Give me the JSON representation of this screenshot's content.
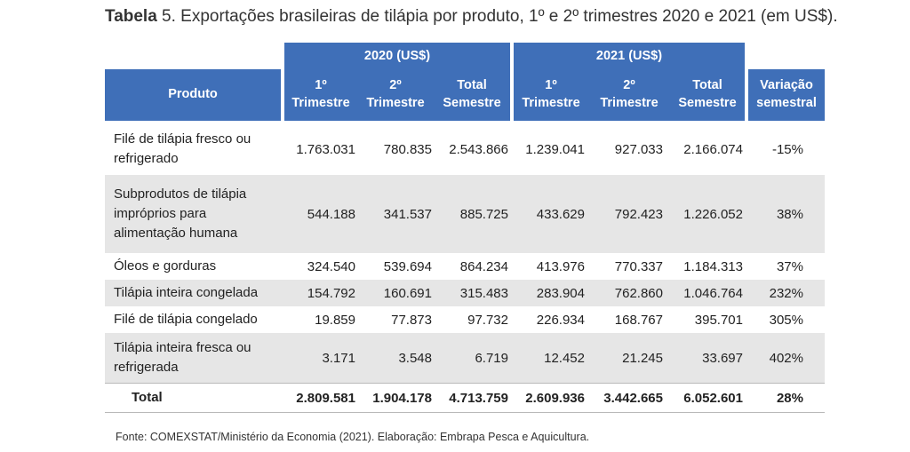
{
  "caption": {
    "prefix": "Tabela",
    "text": " 5. Exportações brasileiras de tilápia por produto, 1º e 2º trimestres 2020 e 2021 (em US$)."
  },
  "table": {
    "group_headers": [
      "2020 (US$)",
      "2021 (US$)"
    ],
    "columns": [
      "Produto",
      "1º\nTrimestre",
      "2º\nTrimestre",
      "Total\nSemestre",
      "1º\nTrimestre",
      "2º\nTrimestre",
      "Total\nSemestre",
      "Variação\nsemestral"
    ],
    "rows": [
      {
        "produto": "Filé de tilápia fresco ou refrigerado",
        "values": [
          "1.763.031",
          "780.835",
          "2.543.866",
          "1.239.041",
          "927.033",
          "2.166.074",
          "-15%"
        ]
      },
      {
        "produto": "Subprodutos de tilápia impróprios para alimentação humana",
        "values": [
          "544.188",
          "341.537",
          "885.725",
          "433.629",
          "792.423",
          "1.226.052",
          "38%"
        ]
      },
      {
        "produto": "Óleos e gorduras",
        "values": [
          "324.540",
          "539.694",
          "864.234",
          "413.976",
          "770.337",
          "1.184.313",
          "37%"
        ]
      },
      {
        "produto": "Tilápia inteira congelada",
        "values": [
          "154.792",
          "160.691",
          "315.483",
          "283.904",
          "762.860",
          "1.046.764",
          "232%"
        ]
      },
      {
        "produto": "Filé de tilápia congelado",
        "values": [
          "19.859",
          "77.873",
          "97.732",
          "226.934",
          "168.767",
          "395.701",
          "305%"
        ]
      },
      {
        "produto": "Tilápia inteira fresca ou refrigerada",
        "values": [
          "3.171",
          "3.548",
          "6.719",
          "12.452",
          "21.245",
          "33.697",
          "402%"
        ]
      }
    ],
    "total": {
      "produto": "Total",
      "values": [
        "2.809.581",
        "1.904.178",
        "4.713.759",
        "2.609.936",
        "3.442.665",
        "6.052.601",
        "28%"
      ]
    }
  },
  "source": "Fonte: COMEXSTAT/Ministério da Economia (2021). Elaboração: Embrapa Pesca e Aquicultura."
}
